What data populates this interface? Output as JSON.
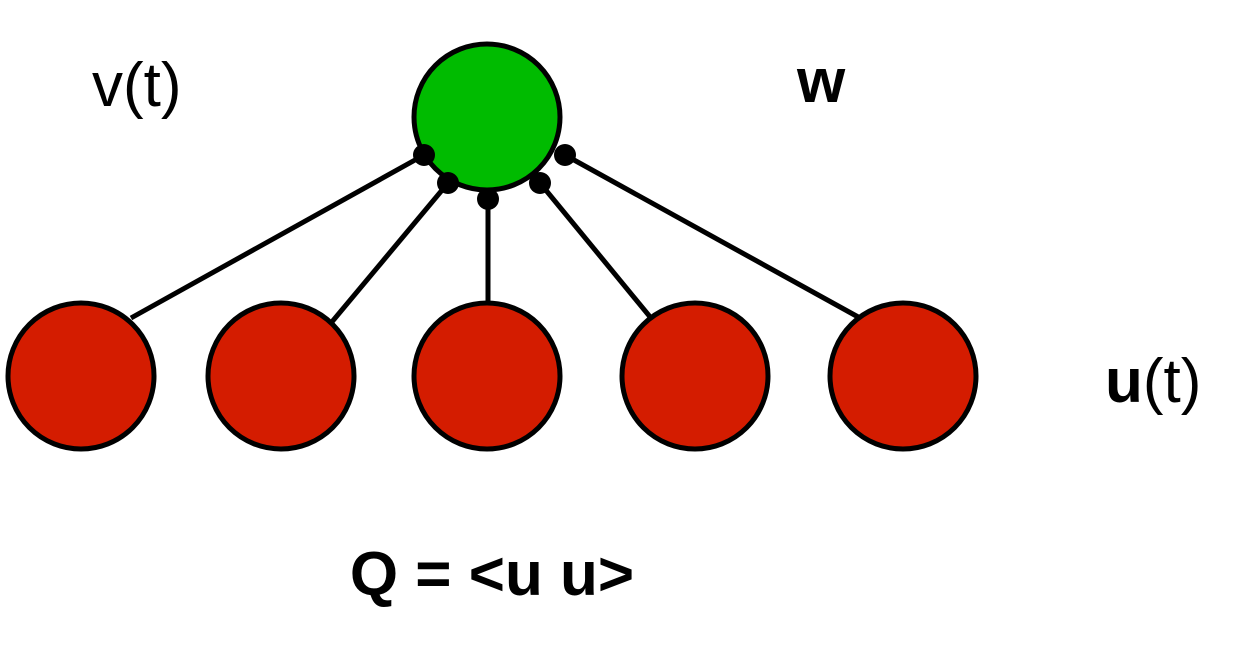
{
  "diagram": {
    "labels": {
      "output_label": "v(t)",
      "weights_label": "w",
      "input_label_bold": "u",
      "input_label_rest": "(t)",
      "equation": "Q = <u u>"
    },
    "output_neuron": {
      "color": "#00bb00"
    },
    "input_neurons": {
      "count": 5,
      "color": "#d41c00"
    },
    "connection": {
      "color": "#000000",
      "synapse": "dot"
    }
  }
}
